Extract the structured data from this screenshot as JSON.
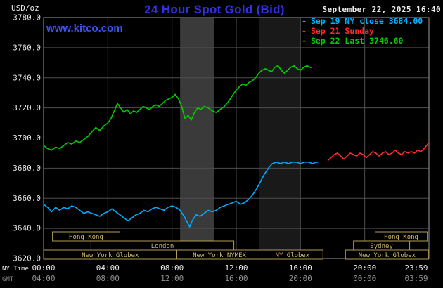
{
  "header": {
    "unit_label": "USD/oz",
    "title": "24 Hour Spot Gold (Bid)",
    "watermark": "www.kitco.com",
    "datetime": "September 22, 2025 16:40"
  },
  "legend": {
    "marker": "-",
    "items": [
      {
        "id": "sep19",
        "label": "Sep 19 NY close 3684.00",
        "color": "#00b4ff"
      },
      {
        "id": "sep21",
        "label": "Sep 21 Sunday",
        "color": "#ff2a2a"
      },
      {
        "id": "sep22",
        "label": "Sep 22 Last 3746.60",
        "color": "#00cc00"
      }
    ]
  },
  "axes": {
    "y_ticks": [
      {
        "label": "3780.0",
        "value": 3780
      },
      {
        "label": "3760.0",
        "value": 3760
      },
      {
        "label": "3740.0",
        "value": 3740
      },
      {
        "label": "3720.0",
        "value": 3720
      },
      {
        "label": "3700.0",
        "value": 3700
      },
      {
        "label": "3680.0",
        "value": 3680
      },
      {
        "label": "3660.0",
        "value": 3660
      },
      {
        "label": "3640.0",
        "value": 3640
      },
      {
        "label": "3620.0",
        "value": 3620
      }
    ],
    "x_rows": [
      {
        "label": "NY Time",
        "color": "#e6e6e6",
        "ticks": [
          "00:00",
          "04:00",
          "08:00",
          "12:00",
          "16:00",
          "20:00",
          "23:59"
        ]
      },
      {
        "label": "GMT",
        "color": "#8f8f8f",
        "ticks": [
          "04:00",
          "08:00",
          "12:00",
          "16:00",
          "20:00",
          "00:00",
          "03:59"
        ]
      }
    ]
  },
  "sessions": {
    "rows": [
      [
        {
          "label": "Hong Kong",
          "start": 0.55,
          "end": 4.75
        },
        {
          "label": "Hong Kong",
          "start": 20.65,
          "end": 23.9
        }
      ],
      [
        {
          "label": "London",
          "start": 2.95,
          "end": 11.85
        },
        {
          "label": "Sydney",
          "start": 19.3,
          "end": 22.8
        }
      ],
      [
        {
          "label": "New York Globex",
          "start": 0.0,
          "end": 8.3
        },
        {
          "label": "New York NYMEX",
          "start": 8.3,
          "end": 13.6
        },
        {
          "label": "NY Globex",
          "start": 13.6,
          "end": 17.4
        },
        {
          "label": "New York Globex",
          "start": 18.8,
          "end": 23.98
        }
      ]
    ]
  },
  "chart_data": {
    "type": "line",
    "title": "24 Hour Spot Gold (Bid)",
    "ylabel": "USD/oz",
    "x_unit": "hours NY Time",
    "xlim": [
      0,
      24
    ],
    "ylim": [
      3620,
      3780
    ],
    "grid": true,
    "colors": {
      "background": "#000000",
      "grid": "#4e4e4e",
      "border": "#9a9a9a",
      "session_box_border": "#b39d52",
      "session_text": "#cdb96a"
    },
    "bands": [
      {
        "start": 8.5,
        "end": 10.6,
        "color": "#3a3a3a"
      },
      {
        "start": 13.4,
        "end": 16.0,
        "color": "#191919"
      }
    ],
    "series": [
      {
        "id": "sep19",
        "name": "Sep 19 NY close",
        "close": 3684.0,
        "color": "#00aaff",
        "points": [
          [
            0,
            3656
          ],
          [
            0.25,
            3654
          ],
          [
            0.5,
            3651
          ],
          [
            0.75,
            3654
          ],
          [
            1,
            3652
          ],
          [
            1.25,
            3654
          ],
          [
            1.5,
            3653
          ],
          [
            1.75,
            3655
          ],
          [
            2,
            3654
          ],
          [
            2.25,
            3652
          ],
          [
            2.5,
            3650
          ],
          [
            2.75,
            3651
          ],
          [
            3,
            3650
          ],
          [
            3.25,
            3649
          ],
          [
            3.5,
            3648
          ],
          [
            3.75,
            3650
          ],
          [
            4,
            3651
          ],
          [
            4.25,
            3653
          ],
          [
            4.5,
            3651
          ],
          [
            4.75,
            3649
          ],
          [
            5,
            3647
          ],
          [
            5.25,
            3645
          ],
          [
            5.5,
            3647
          ],
          [
            5.75,
            3649
          ],
          [
            6,
            3650
          ],
          [
            6.25,
            3652
          ],
          [
            6.5,
            3651
          ],
          [
            6.75,
            3653
          ],
          [
            7,
            3654
          ],
          [
            7.25,
            3653
          ],
          [
            7.5,
            3652
          ],
          [
            7.75,
            3654
          ],
          [
            8,
            3655
          ],
          [
            8.25,
            3654
          ],
          [
            8.5,
            3652
          ],
          [
            8.75,
            3648
          ],
          [
            9,
            3643
          ],
          [
            9.1,
            3641
          ],
          [
            9.25,
            3645
          ],
          [
            9.5,
            3649
          ],
          [
            9.75,
            3648
          ],
          [
            10,
            3650
          ],
          [
            10.25,
            3652
          ],
          [
            10.5,
            3651
          ],
          [
            10.75,
            3652
          ],
          [
            11,
            3654
          ],
          [
            11.25,
            3655
          ],
          [
            11.5,
            3656
          ],
          [
            11.75,
            3657
          ],
          [
            12,
            3658
          ],
          [
            12.25,
            3656
          ],
          [
            12.5,
            3657
          ],
          [
            12.75,
            3659
          ],
          [
            13,
            3662
          ],
          [
            13.25,
            3666
          ],
          [
            13.5,
            3671
          ],
          [
            13.75,
            3676
          ],
          [
            14,
            3680
          ],
          [
            14.25,
            3683
          ],
          [
            14.5,
            3684
          ],
          [
            14.75,
            3683
          ],
          [
            15,
            3684
          ],
          [
            15.25,
            3683
          ],
          [
            15.5,
            3684
          ],
          [
            15.75,
            3684
          ],
          [
            16,
            3683
          ],
          [
            16.25,
            3684
          ],
          [
            16.5,
            3684
          ],
          [
            16.75,
            3683
          ],
          [
            17,
            3684
          ],
          [
            17.1,
            3684
          ]
        ]
      },
      {
        "id": "sep21",
        "name": "Sep 21 Sunday",
        "color": "#ff2a2a",
        "points": [
          [
            17.7,
            3685
          ],
          [
            17.9,
            3687
          ],
          [
            18.1,
            3689
          ],
          [
            18.3,
            3690
          ],
          [
            18.5,
            3688
          ],
          [
            18.7,
            3686
          ],
          [
            18.9,
            3688
          ],
          [
            19.1,
            3690
          ],
          [
            19.3,
            3689
          ],
          [
            19.5,
            3688
          ],
          [
            19.7,
            3690
          ],
          [
            19.9,
            3689
          ],
          [
            20.1,
            3687
          ],
          [
            20.3,
            3689
          ],
          [
            20.5,
            3691
          ],
          [
            20.7,
            3690
          ],
          [
            20.9,
            3688
          ],
          [
            21.1,
            3690
          ],
          [
            21.3,
            3691
          ],
          [
            21.5,
            3689
          ],
          [
            21.7,
            3690
          ],
          [
            21.9,
            3692
          ],
          [
            22.1,
            3690
          ],
          [
            22.3,
            3689
          ],
          [
            22.5,
            3691
          ],
          [
            22.7,
            3690
          ],
          [
            22.9,
            3691
          ],
          [
            23.1,
            3690
          ],
          [
            23.3,
            3692
          ],
          [
            23.5,
            3691
          ],
          [
            23.7,
            3693
          ],
          [
            23.85,
            3695
          ],
          [
            24,
            3697
          ]
        ]
      },
      {
        "id": "sep22",
        "name": "Sep 22 Last",
        "last": 3746.6,
        "color": "#00cc00",
        "points": [
          [
            0,
            3695
          ],
          [
            0.25,
            3693
          ],
          [
            0.5,
            3692
          ],
          [
            0.75,
            3694
          ],
          [
            1,
            3693
          ],
          [
            1.25,
            3695
          ],
          [
            1.5,
            3697
          ],
          [
            1.75,
            3696
          ],
          [
            2,
            3698
          ],
          [
            2.25,
            3697
          ],
          [
            2.5,
            3699
          ],
          [
            2.75,
            3701
          ],
          [
            3,
            3704
          ],
          [
            3.25,
            3707
          ],
          [
            3.5,
            3705
          ],
          [
            3.75,
            3708
          ],
          [
            4,
            3710
          ],
          [
            4.2,
            3713
          ],
          [
            4.4,
            3718
          ],
          [
            4.6,
            3723
          ],
          [
            4.8,
            3720
          ],
          [
            5,
            3717
          ],
          [
            5.2,
            3719
          ],
          [
            5.4,
            3716
          ],
          [
            5.6,
            3718
          ],
          [
            5.8,
            3717
          ],
          [
            6,
            3719
          ],
          [
            6.2,
            3721
          ],
          [
            6.4,
            3720
          ],
          [
            6.6,
            3719
          ],
          [
            6.8,
            3721
          ],
          [
            7,
            3722
          ],
          [
            7.2,
            3721
          ],
          [
            7.4,
            3723
          ],
          [
            7.6,
            3725
          ],
          [
            7.8,
            3726
          ],
          [
            8,
            3727
          ],
          [
            8.2,
            3729
          ],
          [
            8.4,
            3726
          ],
          [
            8.6,
            3721
          ],
          [
            8.8,
            3713
          ],
          [
            9,
            3715
          ],
          [
            9.2,
            3712
          ],
          [
            9.4,
            3717
          ],
          [
            9.6,
            3720
          ],
          [
            9.8,
            3719
          ],
          [
            10,
            3721
          ],
          [
            10.25,
            3720
          ],
          [
            10.5,
            3718
          ],
          [
            10.75,
            3717
          ],
          [
            11,
            3719
          ],
          [
            11.25,
            3721
          ],
          [
            11.5,
            3724
          ],
          [
            11.75,
            3728
          ],
          [
            12,
            3732
          ],
          [
            12.2,
            3734
          ],
          [
            12.4,
            3736
          ],
          [
            12.6,
            3735
          ],
          [
            12.8,
            3737
          ],
          [
            13,
            3738
          ],
          [
            13.2,
            3740
          ],
          [
            13.4,
            3743
          ],
          [
            13.6,
            3745
          ],
          [
            13.8,
            3746
          ],
          [
            14,
            3745
          ],
          [
            14.2,
            3744
          ],
          [
            14.4,
            3747
          ],
          [
            14.6,
            3748
          ],
          [
            14.8,
            3745
          ],
          [
            15,
            3743
          ],
          [
            15.2,
            3745
          ],
          [
            15.4,
            3747
          ],
          [
            15.6,
            3748
          ],
          [
            15.8,
            3746
          ],
          [
            16,
            3745
          ],
          [
            16.2,
            3747
          ],
          [
            16.4,
            3748
          ],
          [
            16.67,
            3746.6
          ]
        ]
      }
    ]
  }
}
